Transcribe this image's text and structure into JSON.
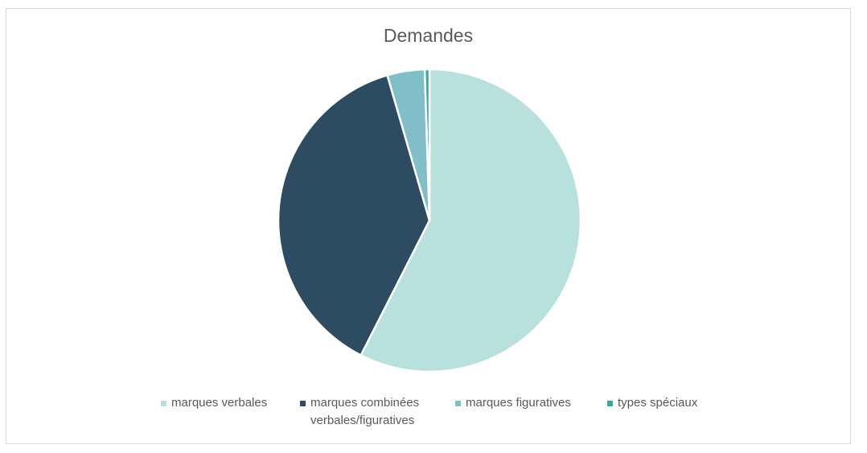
{
  "chart_data": {
    "type": "pie",
    "title": "Demandes",
    "categories": [
      "marques verbales",
      "marques combinées verbales/figuratives",
      "marques figuratives",
      "types spéciaux"
    ],
    "values": [
      57.5,
      38.0,
      4.0,
      0.5
    ],
    "colors": [
      "#b8e0dd",
      "#2e4c61",
      "#80bfc8",
      "#3aa59c"
    ],
    "legend_position": "bottom"
  }
}
